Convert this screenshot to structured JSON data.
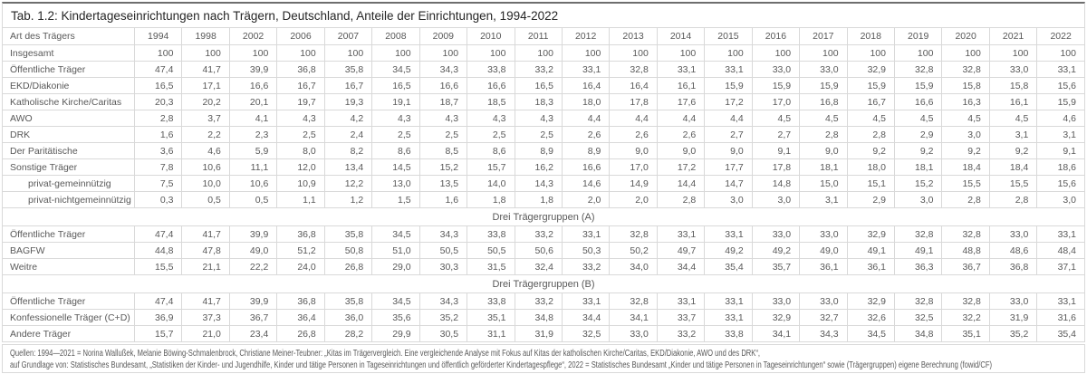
{
  "page": {
    "title": "Tab. 1.2: Kindertageseinrichtungen nach Trägern, Deutschland, Anteile der Einrichtungen, 1994-2022"
  },
  "colors": {
    "border_light": "#d9d9d9",
    "border_top_accent": "#6e6e6e",
    "text": "#595959",
    "title_text": "#262626",
    "background": "#ffffff"
  },
  "table": {
    "corner_label": "Art des Trägers",
    "years": [
      "1994",
      "1998",
      "2002",
      "2006",
      "2007",
      "2008",
      "2009",
      "2010",
      "2011",
      "2012",
      "2013",
      "2014",
      "2015",
      "2016",
      "2017",
      "2018",
      "2019",
      "2020",
      "2021",
      "2022"
    ],
    "sections": [
      {
        "header": null,
        "rows": [
          {
            "label": "Insgesamt",
            "indent": false,
            "values": [
              "100",
              "100",
              "100",
              "100",
              "100",
              "100",
              "100",
              "100",
              "100",
              "100",
              "100",
              "100",
              "100",
              "100",
              "100",
              "100",
              "100",
              "100",
              "100",
              "100"
            ]
          },
          {
            "label": "Öffentliche Träger",
            "indent": false,
            "values": [
              "47,4",
              "41,7",
              "39,9",
              "36,8",
              "35,8",
              "34,5",
              "34,3",
              "33,8",
              "33,2",
              "33,1",
              "32,8",
              "33,1",
              "33,1",
              "33,0",
              "33,0",
              "32,9",
              "32,8",
              "32,8",
              "33,0",
              "33,1"
            ]
          },
          {
            "label": "EKD/Diakonie",
            "indent": false,
            "values": [
              "16,5",
              "17,1",
              "16,6",
              "16,7",
              "16,7",
              "16,5",
              "16,6",
              "16,6",
              "16,5",
              "16,4",
              "16,4",
              "16,1",
              "15,9",
              "15,9",
              "15,9",
              "15,9",
              "15,9",
              "15,8",
              "15,8",
              "15,6"
            ]
          },
          {
            "label": "Katholische Kirche/Caritas",
            "indent": false,
            "values": [
              "20,3",
              "20,2",
              "20,1",
              "19,7",
              "19,3",
              "19,1",
              "18,7",
              "18,5",
              "18,3",
              "18,0",
              "17,8",
              "17,6",
              "17,2",
              "17,0",
              "16,8",
              "16,7",
              "16,6",
              "16,3",
              "16,1",
              "15,9"
            ]
          },
          {
            "label": "AWO",
            "indent": false,
            "values": [
              "2,8",
              "3,7",
              "4,1",
              "4,3",
              "4,2",
              "4,3",
              "4,3",
              "4,3",
              "4,3",
              "4,4",
              "4,4",
              "4,4",
              "4,4",
              "4,5",
              "4,5",
              "4,5",
              "4,5",
              "4,5",
              "4,5",
              "4,6"
            ]
          },
          {
            "label": "DRK",
            "indent": false,
            "values": [
              "1,6",
              "2,2",
              "2,3",
              "2,5",
              "2,4",
              "2,5",
              "2,5",
              "2,5",
              "2,5",
              "2,6",
              "2,6",
              "2,6",
              "2,7",
              "2,7",
              "2,8",
              "2,8",
              "2,9",
              "3,0",
              "3,1",
              "3,1"
            ]
          },
          {
            "label": "Der Paritätische",
            "indent": false,
            "values": [
              "3,6",
              "4,6",
              "5,9",
              "8,0",
              "8,2",
              "8,6",
              "8,5",
              "8,6",
              "8,9",
              "8,9",
              "9,0",
              "9,0",
              "9,0",
              "9,1",
              "9,0",
              "9,2",
              "9,2",
              "9,2",
              "9,2",
              "9,1"
            ]
          },
          {
            "label": "Sonstige Träger",
            "indent": false,
            "values": [
              "7,8",
              "10,6",
              "11,1",
              "12,0",
              "13,4",
              "14,5",
              "15,2",
              "15,7",
              "16,2",
              "16,6",
              "17,0",
              "17,2",
              "17,7",
              "17,8",
              "18,1",
              "18,0",
              "18,1",
              "18,4",
              "18,4",
              "18,6"
            ]
          },
          {
            "label": "privat-gemeinnützig",
            "indent": true,
            "values": [
              "7,5",
              "10,0",
              "10,6",
              "10,9",
              "12,2",
              "13,0",
              "13,5",
              "14,0",
              "14,3",
              "14,6",
              "14,9",
              "14,4",
              "14,7",
              "14,8",
              "15,0",
              "15,1",
              "15,2",
              "15,5",
              "15,5",
              "15,6"
            ]
          },
          {
            "label": "privat-nichtgemeinnützig",
            "indent": true,
            "values": [
              "0,3",
              "0,5",
              "0,5",
              "1,1",
              "1,2",
              "1,5",
              "1,6",
              "1,8",
              "1,8",
              "2,0",
              "2,0",
              "2,8",
              "3,0",
              "3,0",
              "3,1",
              "2,9",
              "3,0",
              "2,8",
              "2,8",
              "3,0"
            ]
          }
        ]
      },
      {
        "header": "Drei Trägergruppen (A)",
        "rows": [
          {
            "label": "Öffentliche Träger",
            "indent": false,
            "values": [
              "47,4",
              "41,7",
              "39,9",
              "36,8",
              "35,8",
              "34,5",
              "34,3",
              "33,8",
              "33,2",
              "33,1",
              "32,8",
              "33,1",
              "33,1",
              "33,0",
              "33,0",
              "32,9",
              "32,8",
              "32,8",
              "33,0",
              "33,1"
            ]
          },
          {
            "label": "BAGFW",
            "indent": false,
            "values": [
              "44,8",
              "47,8",
              "49,0",
              "51,2",
              "50,8",
              "51,0",
              "50,5",
              "50,5",
              "50,6",
              "50,3",
              "50,2",
              "49,7",
              "49,2",
              "49,2",
              "49,0",
              "49,1",
              "49,1",
              "48,8",
              "48,6",
              "48,4"
            ]
          },
          {
            "label": "Weitre",
            "indent": false,
            "values": [
              "15,5",
              "21,1",
              "22,2",
              "24,0",
              "26,8",
              "29,0",
              "30,3",
              "31,5",
              "32,4",
              "33,2",
              "34,0",
              "34,4",
              "35,4",
              "35,7",
              "36,1",
              "36,1",
              "36,3",
              "36,7",
              "36,8",
              "37,1"
            ]
          }
        ]
      },
      {
        "header": "Drei Trägergruppen (B)",
        "rows": [
          {
            "label": "Öffentliche Träger",
            "indent": false,
            "values": [
              "47,4",
              "41,7",
              "39,9",
              "36,8",
              "35,8",
              "34,5",
              "34,3",
              "33,8",
              "33,2",
              "33,1",
              "32,8",
              "33,1",
              "33,1",
              "33,0",
              "33,0",
              "32,9",
              "32,8",
              "32,8",
              "33,0",
              "33,1"
            ]
          },
          {
            "label": "Konfessionelle Träger (C+D)",
            "indent": false,
            "values": [
              "36,9",
              "37,3",
              "36,7",
              "36,4",
              "36,0",
              "35,6",
              "35,2",
              "35,1",
              "34,8",
              "34,4",
              "34,1",
              "33,7",
              "33,1",
              "32,9",
              "32,7",
              "32,6",
              "32,5",
              "32,2",
              "31,9",
              "31,6"
            ]
          },
          {
            "label": "Andere Träger",
            "indent": false,
            "values": [
              "15,7",
              "21,0",
              "23,4",
              "26,8",
              "28,2",
              "29,9",
              "30,5",
              "31,1",
              "31,9",
              "32,5",
              "33,0",
              "33,2",
              "33,8",
              "34,1",
              "34,3",
              "34,5",
              "34,8",
              "35,1",
              "35,2",
              "35,4"
            ]
          }
        ]
      }
    ]
  },
  "footer": {
    "line1": "Quellen:  1994—2021 = Norina Wallußek, Melanie Böwing-Schmalenbrock, Christiane Meiner-Teubner: „Kitas im Trägervergleich. Eine vergleichende Analyse mit Fokus auf Kitas der katholischen Kirche/Caritas, EKD/Diakonie, AWO und des DRK“,",
    "line2": "auf Grundlage von: Statistisches Bundesamt, „Statistiken der Kinder- und Jugendhilfe, Kinder und tätige Personen in Tageseinrichtungen und öffentlich geförderter Kindertagespflege“, 2022 = Statistisches Bundesamt „Kinder und tätige Personen in Tageseinrichtungen“ sowie (Trägergruppen) eigene Berechnung (fowid/CF)"
  }
}
